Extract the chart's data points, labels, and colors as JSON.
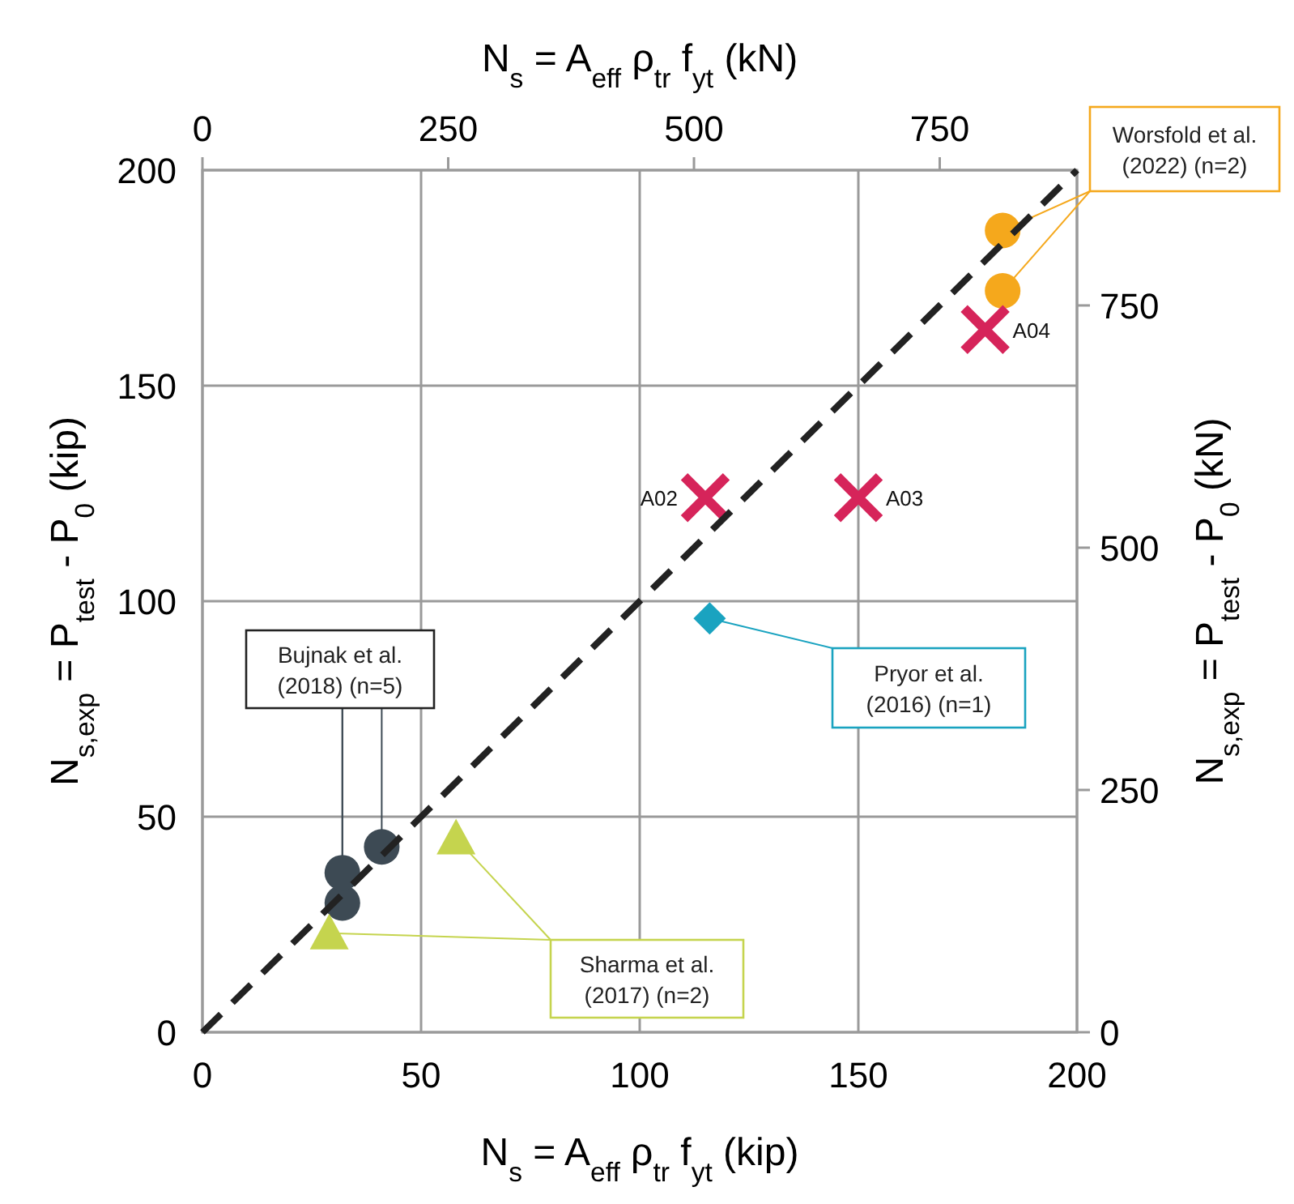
{
  "chart_data": {
    "type": "scatter",
    "xlabel": "N$_{s}$ = A$_{eff}$  ρ$_{tr}$ f$_{yt}$ (kip)",
    "ylabel": "N$_{s,exp}$ = P$_{test}$ - P$_{0}$ (kip)",
    "x2label": "N$_{s}$ = A$_{eff}$  ρ$_{tr}$ f$_{yt}$ (kN)",
    "y2label": "N$_{s,exp}$ = P$_{test}$ - P$_{0}$ (kN)",
    "xlim": [
      0,
      200
    ],
    "ylim": [
      0,
      200
    ],
    "xticks": [
      0,
      50,
      100,
      150,
      200
    ],
    "yticks": [
      0,
      50,
      100,
      150,
      200
    ],
    "x2lim": [
      0,
      889.6
    ],
    "y2lim": [
      0,
      889.6
    ],
    "x2ticks": [
      0,
      250,
      500,
      750
    ],
    "y2ticks": [
      0,
      250,
      500,
      750
    ],
    "grid": true,
    "series": [
      {
        "name": "Worsfold et al. (2022) (n=2)",
        "color": "#f5a81c",
        "marker": "circle",
        "x": [
          183,
          183
        ],
        "values": [
          186,
          172
        ]
      },
      {
        "color": "#d6245a",
        "marker": "cross",
        "x": [
          115,
          150,
          179
        ],
        "values": [
          124,
          124,
          163
        ]
      },
      {
        "name": "Pryor et al. (2016) (n=1)",
        "color": "#1aa3c0",
        "marker": "diamond",
        "x": [
          116
        ],
        "values": [
          96
        ]
      },
      {
        "name": "Bujnak et al. (2018) (n=5)",
        "color": "#3d4a54",
        "marker": "circle",
        "x": [
          32,
          32,
          41
        ],
        "values": [
          30,
          37,
          43
        ]
      },
      {
        "name": "Sharma et al. (2017) (n=2)",
        "color": "#c5d44e",
        "marker": "triangle",
        "x": [
          29,
          58
        ],
        "values": [
          23,
          45
        ]
      },
      {
        "type": "line",
        "color": "#222222",
        "marker": "none",
        "line_style": "dashed",
        "x": [
          0,
          200
        ],
        "values": [
          0,
          200
        ]
      }
    ],
    "annotations": [
      {
        "text": "A02",
        "x": 115,
        "y": 124
      },
      {
        "text": "A03",
        "x": 150,
        "y": 124
      },
      {
        "text": "A04",
        "x": 179,
        "y": 163
      }
    ]
  }
}
